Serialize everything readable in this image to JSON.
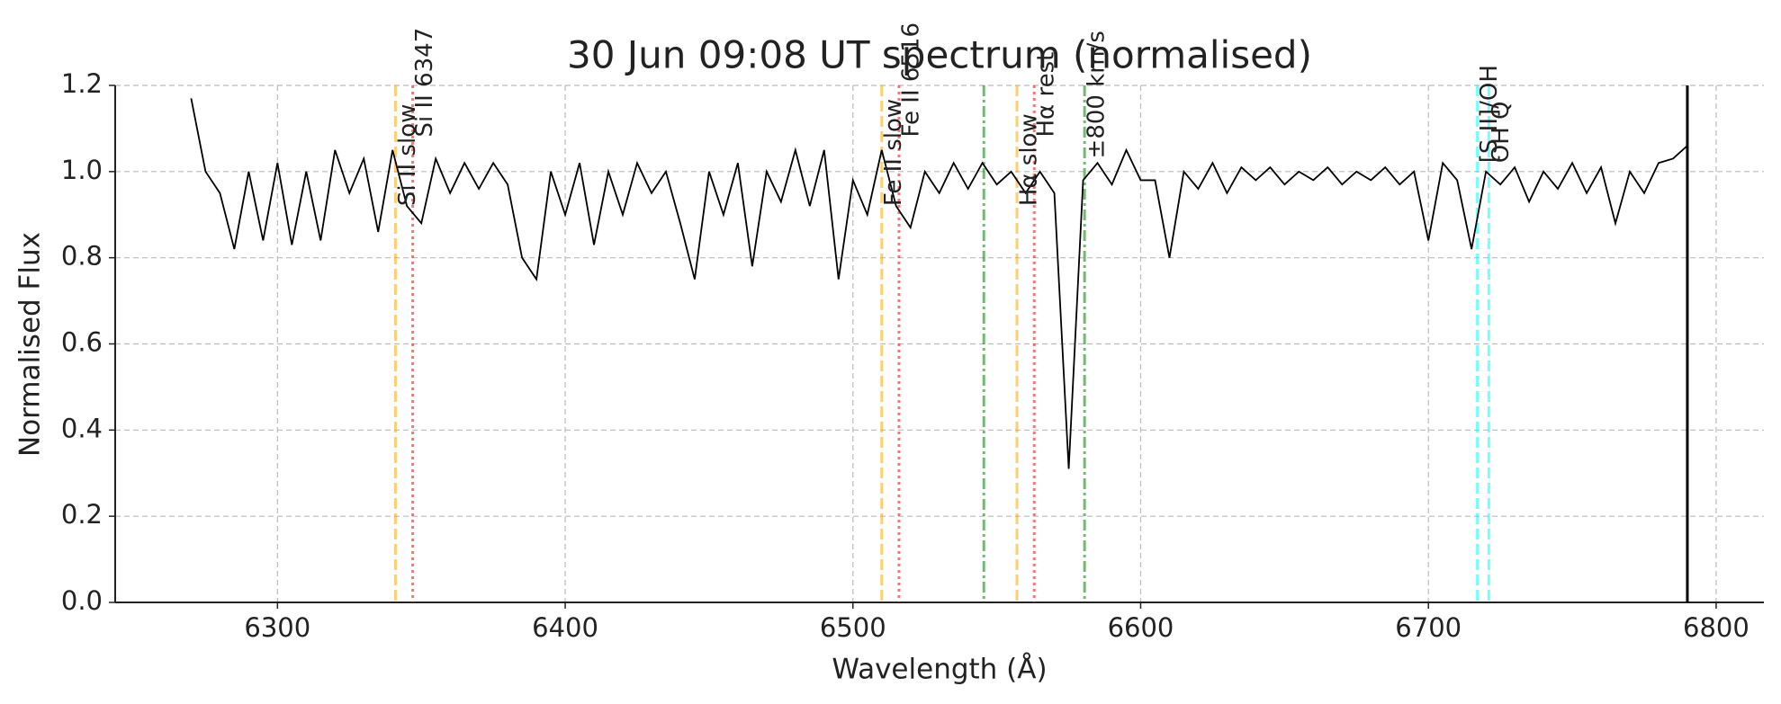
{
  "chart_data": {
    "type": "line",
    "title": "30 Jun 09:08 UT spectrum (normalised)",
    "xlabel": "Wavelength (Å)",
    "ylabel": "Normalised Flux",
    "xlim": [
      6243.6,
      6816.6
    ],
    "ylim": [
      0,
      1.2
    ],
    "xticks": [
      6300,
      6400,
      6500,
      6600,
      6700,
      6800
    ],
    "yticks": [
      {
        "value": 0,
        "label": "0.0"
      },
      0.2,
      0.4,
      0.6,
      0.8,
      {
        "value": 1,
        "label": "1.0"
      },
      1.2
    ],
    "grid": true,
    "color": "#000000",
    "x": [
      6270,
      6275,
      6280,
      6285,
      6290,
      6295,
      6300,
      6305,
      6310,
      6315,
      6320,
      6325,
      6330,
      6335,
      6340,
      6345,
      6350,
      6355,
      6360,
      6365,
      6370,
      6375,
      6380,
      6385,
      6390,
      6395,
      6400,
      6405,
      6410,
      6415,
      6420,
      6425,
      6430,
      6435,
      6440,
      6445,
      6450,
      6455,
      6460,
      6465,
      6470,
      6475,
      6480,
      6485,
      6490,
      6495,
      6500,
      6505,
      6510,
      6515,
      6520,
      6525,
      6530,
      6535,
      6540,
      6545,
      6550,
      6555,
      6560,
      6565,
      6570,
      6575,
      6580,
      6585,
      6590,
      6595,
      6600,
      6605,
      6610,
      6615,
      6620,
      6625,
      6630,
      6635,
      6640,
      6645,
      6650,
      6655,
      6660,
      6665,
      6670,
      6675,
      6680,
      6685,
      6690,
      6695,
      6700,
      6705,
      6710,
      6715,
      6720,
      6725,
      6730,
      6735,
      6740,
      6745,
      6750,
      6755,
      6760,
      6765,
      6770,
      6775,
      6780,
      6785,
      6790
    ],
    "values": [
      1.17,
      1.0,
      0.95,
      0.82,
      1.0,
      0.84,
      1.02,
      0.83,
      1.0,
      0.84,
      1.05,
      0.95,
      1.03,
      0.86,
      1.05,
      0.92,
      0.88,
      1.03,
      0.95,
      1.02,
      0.96,
      1.02,
      0.97,
      0.8,
      0.75,
      1.0,
      0.9,
      1.02,
      0.83,
      1.0,
      0.9,
      1.02,
      0.95,
      1.0,
      0.88,
      0.75,
      1.0,
      0.9,
      1.02,
      0.78,
      1.0,
      0.93,
      1.05,
      0.92,
      1.05,
      0.75,
      0.98,
      0.9,
      1.05,
      0.92,
      0.87,
      1.0,
      0.95,
      1.02,
      0.96,
      1.02,
      0.97,
      1.0,
      0.95,
      1.0,
      0.95,
      0.31,
      0.98,
      1.02,
      0.97,
      1.05,
      0.98,
      0.98,
      0.8,
      1.0,
      0.96,
      1.02,
      0.95,
      1.01,
      0.98,
      1.01,
      0.97,
      1.0,
      0.98,
      1.01,
      0.97,
      1.0,
      0.98,
      1.01,
      0.97,
      1.0,
      0.84,
      1.02,
      0.98,
      0.82,
      1.0,
      0.97,
      1.01,
      0.93,
      1.0,
      0.96,
      1.02,
      0.95,
      1.01,
      0.88,
      1.0,
      0.95,
      1.02,
      1.03,
      1.06
    ],
    "vlines": [
      {
        "x": 6341,
        "label": "Si II slow",
        "color": "#ffa500",
        "style": "dashed"
      },
      {
        "x": 6347,
        "label": "Si II 6347",
        "color": "#ff0000",
        "style": "dotted"
      },
      {
        "x": 6510,
        "label": "Fe II slow",
        "color": "#ffa500",
        "style": "dashed"
      },
      {
        "x": 6516,
        "label": "Fe II 6516",
        "color": "#ff0000",
        "style": "dotted"
      },
      {
        "x": 6545.5,
        "color": "#008000",
        "style": "dashdot"
      },
      {
        "x": 6557,
        "label": "Hα slow",
        "color": "#ffa500",
        "style": "dashed"
      },
      {
        "x": 6563,
        "label": "Hα rest",
        "color": "#ff0000",
        "style": "dotted"
      },
      {
        "x": 6580.5,
        "label": "±800 km/s",
        "color": "#008000",
        "style": "dashdot"
      },
      {
        "x": 6717,
        "label": "[S II]/OH",
        "color": "#00ffff",
        "style": "dashed"
      },
      {
        "x": 6721,
        "label": "OH Q",
        "color": "#00ffff",
        "style": "dashed"
      },
      {
        "x": 6790,
        "color": "#000000",
        "style": "solid"
      }
    ]
  }
}
